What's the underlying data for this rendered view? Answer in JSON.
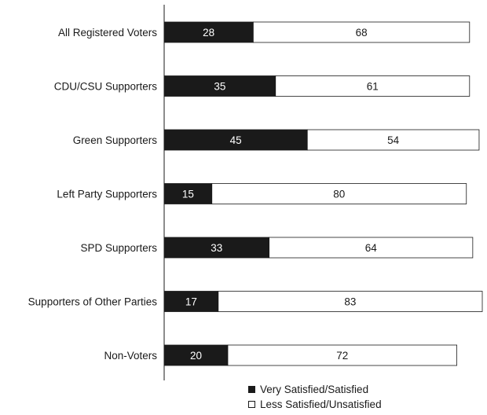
{
  "chart_data": {
    "type": "bar",
    "orientation": "horizontal",
    "stacked": true,
    "categories": [
      "All Registered Voters",
      "CDU/CSU Supporters",
      "Green Supporters",
      "Left Party Supporters",
      "SPD Supporters",
      "Supporters of Other Parties",
      "Non-Voters"
    ],
    "series": [
      {
        "name": "Very Satisfied/Satisfied",
        "values": [
          28,
          35,
          45,
          15,
          33,
          17,
          20
        ],
        "color": "#1a1a1a",
        "label_color": "#ffffff"
      },
      {
        "name": "Less Satisfied/Unsatisfied",
        "values": [
          68,
          61,
          54,
          80,
          64,
          83,
          72
        ],
        "color": "#ffffff",
        "label_color": "#1a1a1a"
      }
    ],
    "xlim": [
      0,
      100
    ],
    "grid": false,
    "legend_position": "bottom"
  }
}
